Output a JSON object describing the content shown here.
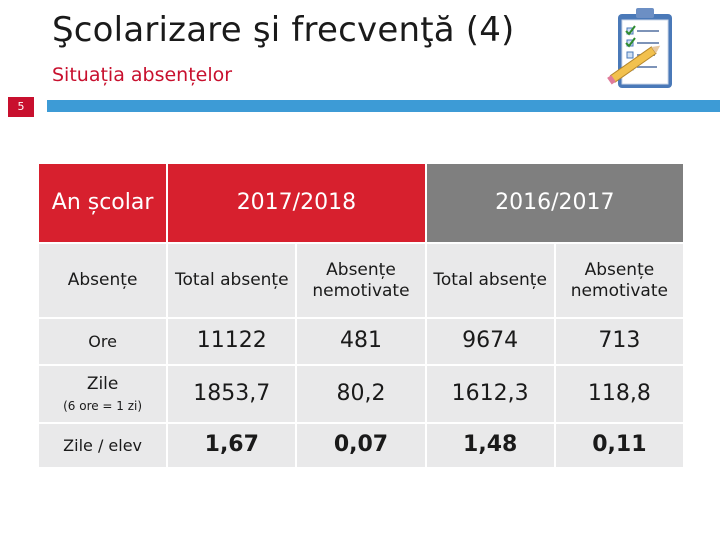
{
  "slide": {
    "title": "Şcolarizare şi frecvenţă (4)",
    "subtitle": "Situația absențelor",
    "number": "5"
  },
  "colors": {
    "accent_red": "#d7202e",
    "header_gray": "#7f7f7f",
    "bar_blue": "#3d9bd6",
    "cell_bg": "#e9e9ea"
  },
  "icons": {
    "logo": "checklist-clipboard-pencil-icon"
  },
  "table": {
    "header": {
      "year_label": "An școlar",
      "year1": "2017/2018",
      "year2": "2016/2017"
    },
    "subheader": {
      "label": "Absențe",
      "cols": [
        "Total absențe",
        "Absențe nemotivate",
        "Total absențe",
        "Absențe nemotivate"
      ]
    },
    "rows": [
      {
        "label": "Ore",
        "note": "",
        "values": [
          "11122",
          "481",
          "9674",
          "713"
        ]
      },
      {
        "label": "Zile",
        "note": "(6 ore = 1 zi)",
        "values": [
          "1853,7",
          "80,2",
          "1612,3",
          "118,8"
        ]
      },
      {
        "label": "Zile / elev",
        "note": "",
        "values": [
          "1,67",
          "0,07",
          "1,48",
          "0,11"
        ]
      }
    ]
  }
}
